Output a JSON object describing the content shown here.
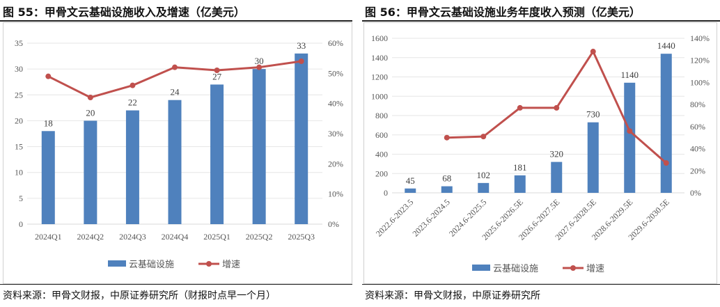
{
  "colors": {
    "bar": "#4f81bd",
    "line": "#c0504d",
    "grid": "#e6e6e6"
  },
  "chart_data": [
    {
      "type": "bar+line",
      "title": "图 55：甲骨文云基础设施收入及增速（亿美元）",
      "categories": [
        "2024Q1",
        "2024Q2",
        "2024Q3",
        "2024Q4",
        "2025Q1",
        "2025Q2",
        "2025Q3"
      ],
      "series": [
        {
          "name": "云基础设施",
          "type": "bar",
          "axis": "left",
          "values": [
            18,
            20,
            22,
            24,
            27,
            30,
            33
          ]
        },
        {
          "name": "增速",
          "type": "line",
          "axis": "right",
          "values": [
            49,
            42,
            46,
            52,
            51,
            52,
            54
          ]
        }
      ],
      "ylim": [
        0,
        35
      ],
      "yticks": [
        "0",
        "5",
        "10",
        "15",
        "20",
        "25",
        "30",
        "35"
      ],
      "y2lim": [
        0,
        60
      ],
      "y2ticks": [
        "0%",
        "10%",
        "20%",
        "30%",
        "40%",
        "50%",
        "60%"
      ],
      "legend": "bottom",
      "source": "资料来源：甲骨文财报，中原证券研究所（财报时点早一个月）"
    },
    {
      "type": "bar+line",
      "title": "图 56：甲骨文云基础设施业务年度收入预测（亿美元）",
      "categories": [
        "2022.6-2023.5",
        "2023.6-2024.5",
        "2024.6-2025.5",
        "2025.6-2026.5E",
        "2026.6-2027.5E",
        "2027.6-2028.5E",
        "2028.6-2029.5E",
        "2029.6-2030.5E"
      ],
      "series": [
        {
          "name": "云基础设施",
          "type": "bar",
          "axis": "left",
          "values": [
            45,
            68,
            102,
            181,
            320,
            730,
            1140,
            1440
          ]
        },
        {
          "name": "增速",
          "type": "line",
          "axis": "right",
          "values": [
            null,
            50,
            51,
            77,
            77,
            128,
            56,
            27
          ]
        }
      ],
      "ylim": [
        0,
        1600
      ],
      "yticks": [
        "0",
        "200",
        "400",
        "600",
        "800",
        "1000",
        "1200",
        "1400",
        "1600"
      ],
      "y2lim": [
        0,
        140
      ],
      "y2ticks": [
        "0%",
        "20%",
        "40%",
        "60%",
        "80%",
        "100%",
        "120%",
        "140%"
      ],
      "legend": "bottom",
      "source": "资料来源：甲骨文财报，中原证券研究所"
    }
  ]
}
